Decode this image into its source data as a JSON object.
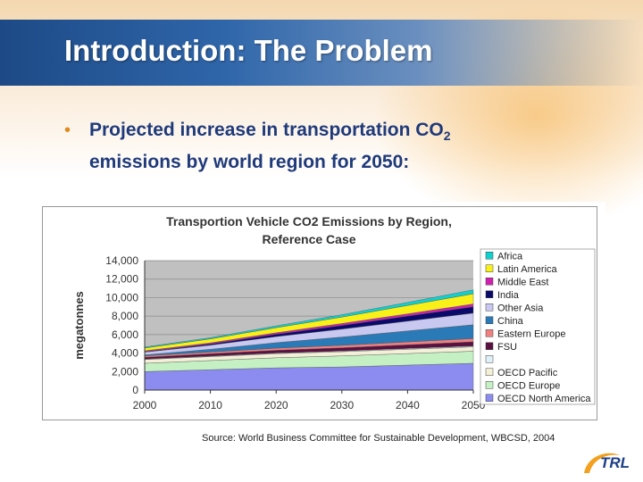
{
  "slide": {
    "title": "Introduction: The Problem",
    "bullet_marker": "•",
    "bullet_main": "Projected increase in transportation CO",
    "bullet_sub": "2",
    "bullet_rest": "emissions by world region for 2050:",
    "source": "Source: World Business Committee for Sustainable Development, WBCSD, 2004",
    "logo_text": "TRL",
    "colors": {
      "title_bar": "#2f66aa",
      "bullet_text": "#1f3a7a",
      "bullet_marker": "#e08a1e",
      "logo_orange": "#f2a01e"
    }
  },
  "chart_data": {
    "type": "area",
    "stacked": true,
    "title_line1": "Transportion Vehicle CO2 Emissions by Region,",
    "title_line2": "Reference Case",
    "ylabel": "megatonnes",
    "xlabel": "",
    "x": [
      2000,
      2010,
      2020,
      2030,
      2040,
      2050
    ],
    "ylim": [
      0,
      14000
    ],
    "y_ticks": [
      "0",
      "2,000",
      "4,000",
      "6,000",
      "8,000",
      "10,000",
      "12,000",
      "14,000"
    ],
    "y_tick_values": [
      0,
      2000,
      4000,
      6000,
      8000,
      10000,
      12000,
      14000
    ],
    "x_ticks": [
      "2000",
      "2010",
      "2020",
      "2030",
      "2040",
      "2050"
    ],
    "plot_background": "#c0c0c0",
    "grid": true,
    "legend_position": "right",
    "series": [
      {
        "name": "OECD North America",
        "color": "#8c8cf0",
        "values": [
          2000,
          2200,
          2400,
          2500,
          2700,
          2900
        ]
      },
      {
        "name": "OECD Europe",
        "color": "#c4f0c4",
        "values": [
          900,
          1000,
          1100,
          1200,
          1250,
          1300
        ]
      },
      {
        "name": "OECD Pacific",
        "color": "#f4f0d8",
        "values": [
          400,
          420,
          440,
          450,
          460,
          470
        ]
      },
      {
        "name": "",
        "color": "#dff0f8",
        "values": [
          50,
          60,
          70,
          80,
          90,
          100
        ]
      },
      {
        "name": "FSU",
        "color": "#5a1040",
        "values": [
          200,
          250,
          300,
          350,
          400,
          450
        ]
      },
      {
        "name": "Eastern Europe",
        "color": "#f08080",
        "values": [
          150,
          180,
          220,
          260,
          300,
          350
        ]
      },
      {
        "name": "China",
        "color": "#2a7ab8",
        "values": [
          100,
          300,
          600,
          900,
          1200,
          1500
        ]
      },
      {
        "name": "Other Asia",
        "color": "#c8c8f0",
        "values": [
          300,
          450,
          650,
          850,
          1050,
          1250
        ]
      },
      {
        "name": "India",
        "color": "#0a0a6a",
        "values": [
          50,
          120,
          250,
          400,
          550,
          700
        ]
      },
      {
        "name": "Middle East",
        "color": "#d020b0",
        "values": [
          100,
          130,
          170,
          210,
          250,
          300
        ]
      },
      {
        "name": "Latin America",
        "color": "#f8f018",
        "values": [
          300,
          420,
          550,
          700,
          900,
          1100
        ]
      },
      {
        "name": "Africa",
        "color": "#10d0d0",
        "values": [
          100,
          140,
          190,
          250,
          330,
          420
        ]
      }
    ]
  }
}
